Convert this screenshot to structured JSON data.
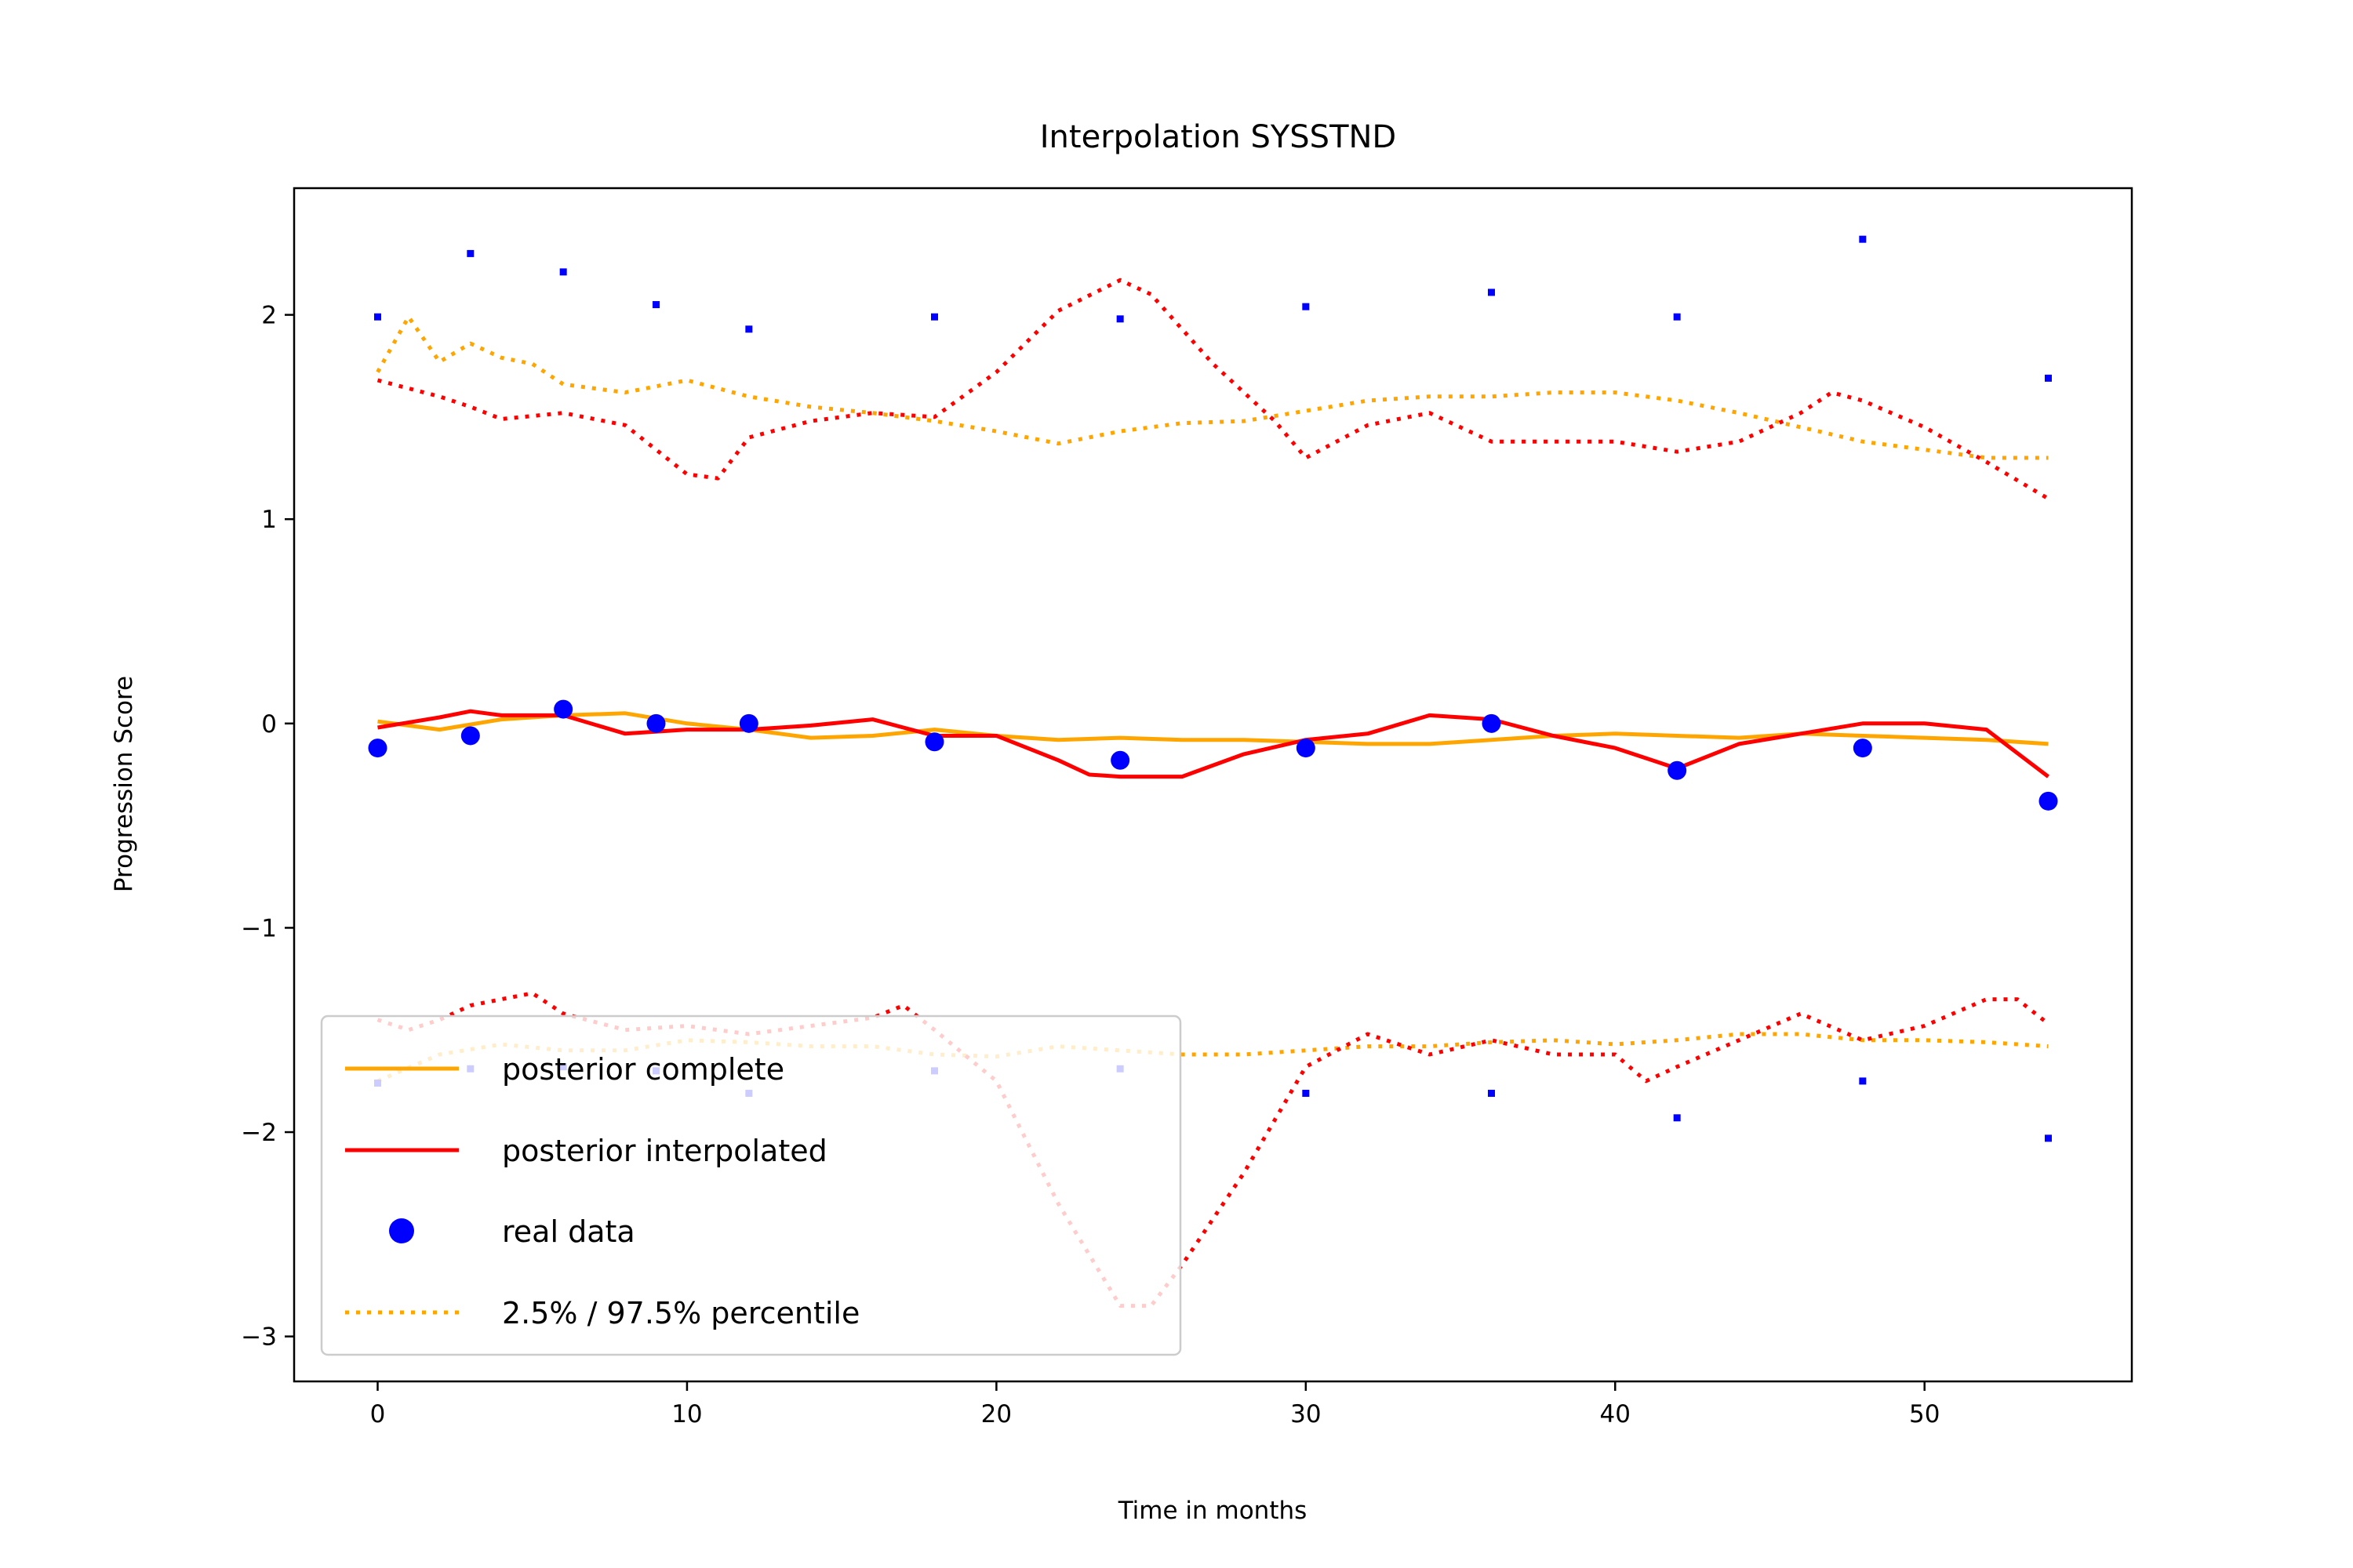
{
  "chart_data": {
    "type": "line",
    "title": "Interpolation SYSSTND",
    "xlabel": "Time in months",
    "ylabel": "Progression Score",
    "xlim": [
      -2.7,
      56.7
    ],
    "ylim": [
      -3.22,
      2.62
    ],
    "xticks": [
      0,
      10,
      20,
      30,
      40,
      50
    ],
    "yticks": [
      -3,
      -2,
      -1,
      0,
      1,
      2
    ],
    "xtick_labels": [
      "0",
      "10",
      "20",
      "30",
      "40",
      "50"
    ],
    "ytick_labels": [
      "−3",
      "−2",
      "−1",
      "0",
      "1",
      "2"
    ],
    "grid": false,
    "legend_position": "lower-left",
    "colors": {
      "complete": "#ffa500",
      "interpolated": "#ff0000",
      "real": "#0000ff"
    },
    "legend": [
      {
        "label": "posterior complete",
        "style": "solid",
        "color": "#ffa500"
      },
      {
        "label": "posterior interpolated",
        "style": "solid",
        "color": "#ff0000"
      },
      {
        "label": "real data",
        "style": "marker",
        "color": "#0000ff"
      },
      {
        "label": "2.5% / 97.5% percentile",
        "style": "dotted",
        "color": "#ffa500"
      }
    ],
    "series": [
      {
        "name": "posterior complete",
        "style": "solid",
        "color": "#ffa500",
        "x": [
          0,
          2,
          4,
          6,
          8,
          10,
          12,
          14,
          16,
          18,
          20,
          22,
          24,
          26,
          28,
          30,
          32,
          34,
          36,
          38,
          40,
          42,
          44,
          46,
          48,
          50,
          52,
          54
        ],
        "y": [
          0.01,
          -0.03,
          0.02,
          0.04,
          0.05,
          0.0,
          -0.03,
          -0.07,
          -0.06,
          -0.03,
          -0.06,
          -0.08,
          -0.07,
          -0.08,
          -0.08,
          -0.09,
          -0.1,
          -0.1,
          -0.08,
          -0.06,
          -0.05,
          -0.06,
          -0.07,
          -0.05,
          -0.06,
          -0.07,
          -0.08,
          -0.1
        ]
      },
      {
        "name": "posterior interpolated",
        "style": "solid",
        "color": "#ff0000",
        "x": [
          0,
          2,
          3,
          4,
          6,
          8,
          10,
          12,
          14,
          16,
          18,
          20,
          22,
          23,
          24,
          26,
          28,
          30,
          32,
          34,
          36,
          38,
          40,
          41,
          42,
          44,
          46,
          48,
          50,
          52,
          54
        ],
        "y": [
          -0.02,
          0.03,
          0.06,
          0.04,
          0.04,
          -0.05,
          -0.03,
          -0.03,
          -0.01,
          0.02,
          -0.06,
          -0.06,
          -0.18,
          -0.25,
          -0.26,
          -0.26,
          -0.15,
          -0.08,
          -0.05,
          0.04,
          0.02,
          -0.06,
          -0.12,
          -0.17,
          -0.22,
          -0.1,
          -0.05,
          0.0,
          0.0,
          -0.03,
          -0.26
        ]
      },
      {
        "name": "real data",
        "style": "marker",
        "color": "#0000ff",
        "x": [
          0,
          3,
          6,
          9,
          12,
          18,
          24,
          30,
          36,
          42,
          48,
          54
        ],
        "y": [
          -0.12,
          -0.06,
          0.07,
          0.0,
          0.0,
          -0.09,
          -0.18,
          -0.12,
          0.0,
          -0.23,
          -0.12,
          -0.38
        ]
      },
      {
        "name": "real data upper",
        "style": "marker-small",
        "color": "#0000ff",
        "x": [
          0,
          3,
          6,
          9,
          12,
          18,
          24,
          30,
          36,
          42,
          48,
          54
        ],
        "y": [
          1.99,
          2.3,
          2.21,
          2.05,
          1.93,
          1.99,
          1.98,
          2.04,
          2.11,
          1.99,
          2.37,
          1.69
        ]
      },
      {
        "name": "real data lower",
        "style": "marker-small",
        "color": "#0000ff",
        "x": [
          0,
          3,
          6,
          9,
          12,
          18,
          24,
          30,
          36,
          42,
          48,
          54
        ],
        "y": [
          -1.76,
          -1.69,
          -1.68,
          -1.7,
          -1.81,
          -1.7,
          -1.69,
          -1.81,
          -1.81,
          -1.93,
          -1.75,
          -2.03
        ]
      },
      {
        "name": "complete 97.5%",
        "style": "dotted",
        "color": "#ffa500",
        "x": [
          0,
          1,
          2,
          3,
          4,
          5,
          6,
          8,
          10,
          12,
          14,
          16,
          18,
          20,
          22,
          24,
          26,
          28,
          30,
          32,
          34,
          36,
          38,
          40,
          42,
          44,
          46,
          48,
          50,
          52,
          54
        ],
        "y": [
          1.72,
          1.99,
          1.77,
          1.86,
          1.79,
          1.76,
          1.66,
          1.62,
          1.68,
          1.6,
          1.55,
          1.52,
          1.48,
          1.43,
          1.37,
          1.43,
          1.47,
          1.48,
          1.53,
          1.58,
          1.6,
          1.6,
          1.62,
          1.62,
          1.58,
          1.52,
          1.45,
          1.38,
          1.34,
          1.3,
          1.3
        ]
      },
      {
        "name": "interpolated 97.5%",
        "style": "dotted",
        "color": "#ff0000",
        "x": [
          0,
          2,
          3,
          4,
          6,
          8,
          10,
          11,
          12,
          14,
          16,
          18,
          20,
          22,
          24,
          25,
          27,
          29,
          30,
          32,
          34,
          36,
          38,
          40,
          42,
          44,
          46,
          47,
          48,
          50,
          52,
          54
        ],
        "y": [
          1.68,
          1.6,
          1.55,
          1.49,
          1.52,
          1.46,
          1.22,
          1.2,
          1.4,
          1.48,
          1.52,
          1.5,
          1.72,
          2.02,
          2.17,
          2.1,
          1.76,
          1.48,
          1.3,
          1.46,
          1.52,
          1.38,
          1.38,
          1.38,
          1.33,
          1.38,
          1.52,
          1.62,
          1.58,
          1.45,
          1.28,
          1.1
        ]
      },
      {
        "name": "complete 2.5%",
        "style": "dotted",
        "color": "#ffa500",
        "x": [
          0,
          2,
          4,
          6,
          8,
          10,
          12,
          14,
          16,
          18,
          20,
          22,
          24,
          26,
          28,
          30,
          32,
          34,
          36,
          38,
          40,
          42,
          44,
          46,
          48,
          50,
          52,
          54
        ],
        "y": [
          -1.75,
          -1.62,
          -1.57,
          -1.6,
          -1.6,
          -1.55,
          -1.56,
          -1.58,
          -1.58,
          -1.62,
          -1.63,
          -1.58,
          -1.6,
          -1.62,
          -1.62,
          -1.6,
          -1.58,
          -1.58,
          -1.56,
          -1.55,
          -1.57,
          -1.55,
          -1.52,
          -1.52,
          -1.55,
          -1.55,
          -1.56,
          -1.58
        ]
      },
      {
        "name": "interpolated 2.5%",
        "style": "dotted",
        "color": "#ff0000",
        "x": [
          0,
          1,
          2,
          3,
          4,
          5,
          6,
          8,
          10,
          12,
          14,
          16,
          17,
          18,
          20,
          22,
          24,
          25,
          26,
          28,
          30,
          32,
          34,
          36,
          38,
          40,
          41,
          42,
          44,
          46,
          48,
          50,
          52,
          53,
          54
        ],
        "y": [
          -1.45,
          -1.5,
          -1.45,
          -1.38,
          -1.35,
          -1.32,
          -1.42,
          -1.5,
          -1.48,
          -1.52,
          -1.48,
          -1.44,
          -1.38,
          -1.5,
          -1.75,
          -2.35,
          -2.85,
          -2.85,
          -2.65,
          -2.2,
          -1.68,
          -1.52,
          -1.62,
          -1.55,
          -1.62,
          -1.62,
          -1.75,
          -1.68,
          -1.55,
          -1.42,
          -1.55,
          -1.48,
          -1.35,
          -1.35,
          -1.47
        ]
      }
    ]
  }
}
